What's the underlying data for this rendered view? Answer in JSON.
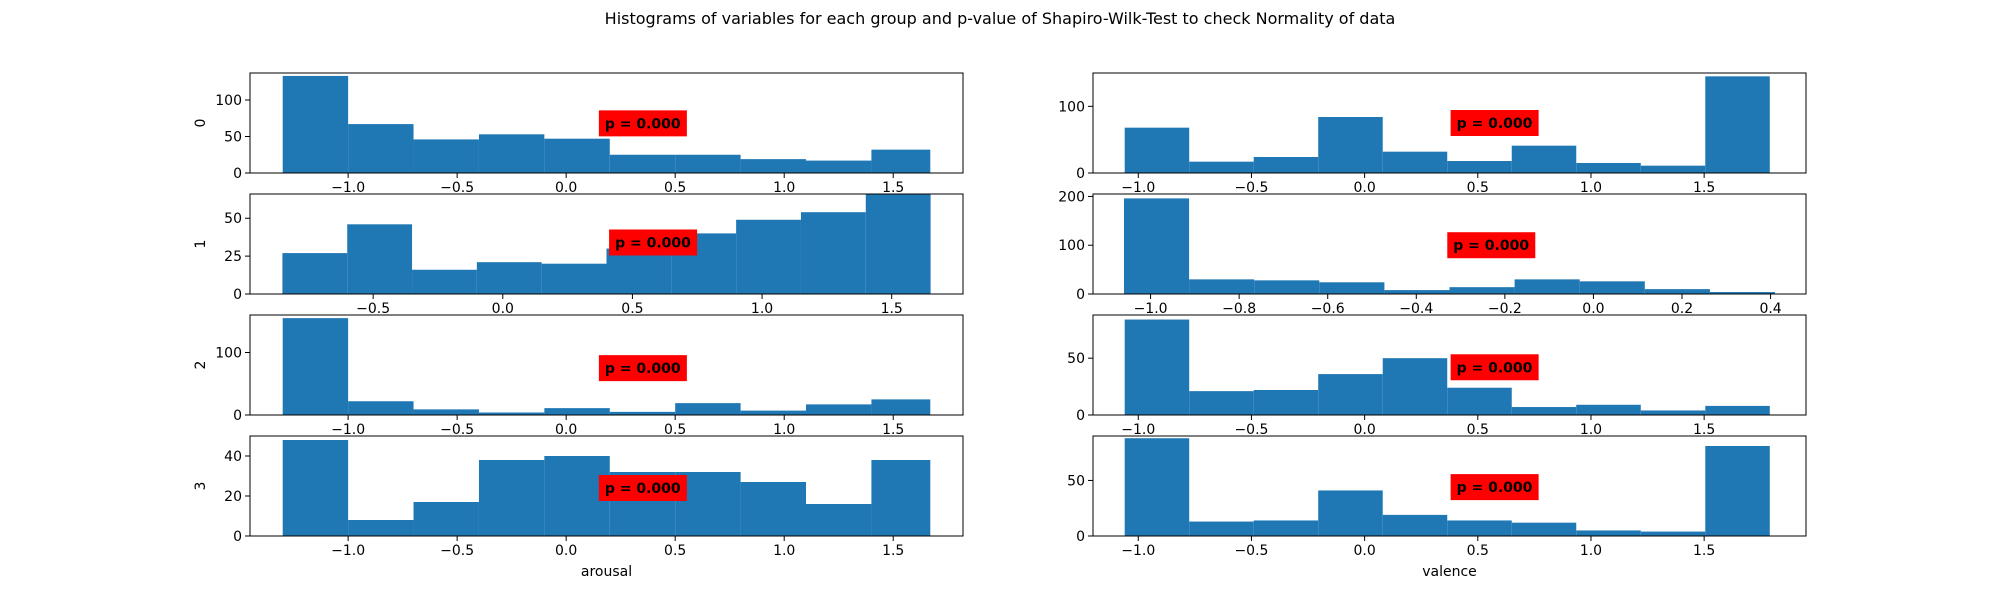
{
  "figure": {
    "title": "Histograms of variables for each group and p-value of Shapiro-Wilk-Test to check Normality of data",
    "bar_color": "#1f77b4",
    "annotation_color": "#ff0000"
  },
  "chart_data": [
    {
      "type": "bar",
      "row_label": "0",
      "column": "arousal",
      "xlabel": "",
      "bin_edges": [
        -1.3,
        -1.0,
        -0.7,
        -0.4,
        -0.1,
        0.2,
        0.5,
        0.8,
        1.1,
        1.4,
        1.67
      ],
      "values": [
        133,
        67,
        46,
        53,
        47,
        25,
        25,
        19,
        17,
        32
      ],
      "xticks": [
        -1.0,
        -0.5,
        0.0,
        0.5,
        1.0,
        1.5
      ],
      "xtick_labels": [
        "−1.0",
        "−0.5",
        "0.0",
        "0.5",
        "1.0",
        "1.5"
      ],
      "yticks": [
        0,
        50,
        100
      ],
      "ylim": [
        0,
        137
      ],
      "xlim": [
        -1.45,
        1.82
      ],
      "annotation": "p = 0.000",
      "annotation_xy": [
        0.15,
        68
      ]
    },
    {
      "type": "bar",
      "row_label": "",
      "column": "valence",
      "xlabel": "",
      "bin_edges": [
        -1.06,
        -0.775,
        -0.49,
        -0.205,
        0.08,
        0.365,
        0.65,
        0.935,
        1.22,
        1.505,
        1.79
      ],
      "values": [
        68,
        17,
        24,
        84,
        32,
        18,
        41,
        15,
        11,
        145
      ],
      "xticks": [
        -1.0,
        -0.5,
        0.0,
        0.5,
        1.0,
        1.5
      ],
      "xtick_labels": [
        "−1.0",
        "−0.5",
        "0.0",
        "0.5",
        "1.0",
        "1.5"
      ],
      "yticks": [
        0,
        100
      ],
      "ylim": [
        0,
        150
      ],
      "xlim": [
        -1.2,
        1.95
      ],
      "annotation": "p = 0.000",
      "annotation_xy": [
        0.38,
        75
      ]
    },
    {
      "type": "bar",
      "row_label": "1",
      "column": "arousal",
      "xlabel": "",
      "bin_edges": [
        -0.85,
        -0.6,
        -0.35,
        -0.1,
        0.15,
        0.4,
        0.65,
        0.9,
        1.15,
        1.4,
        1.65
      ],
      "values": [
        27,
        46,
        16,
        21,
        20,
        30,
        40,
        49,
        54,
        66
      ],
      "xticks": [
        -0.5,
        0.0,
        0.5,
        1.0,
        1.5
      ],
      "xtick_labels": [
        "−0.5",
        "0.0",
        "0.5",
        "1.0",
        "1.5"
      ],
      "yticks": [
        0,
        25,
        50
      ],
      "ylim": [
        0,
        66
      ],
      "xlim": [
        -0.975,
        1.775
      ],
      "annotation": "p = 0.000",
      "annotation_xy": [
        0.41,
        34
      ]
    },
    {
      "type": "bar",
      "row_label": "",
      "column": "valence",
      "xlabel": "",
      "bin_edges": [
        -1.06,
        -0.913,
        -0.766,
        -0.619,
        -0.472,
        -0.325,
        -0.178,
        -0.031,
        0.116,
        0.263,
        0.41
      ],
      "values": [
        196,
        30,
        28,
        24,
        8,
        14,
        30,
        26,
        10,
        4
      ],
      "xticks": [
        -1.0,
        -0.8,
        -0.6,
        -0.4,
        -0.2,
        0.0,
        0.2,
        0.4
      ],
      "xtick_labels": [
        "−1.0",
        "−0.8",
        "−0.6",
        "−0.4",
        "−0.2",
        "0.0",
        "0.2",
        "0.4"
      ],
      "yticks": [
        0,
        100,
        200
      ],
      "ylim": [
        0,
        205
      ],
      "xlim": [
        -1.13,
        0.48
      ],
      "annotation": "p = 0.000",
      "annotation_xy": [
        -0.33,
        100
      ]
    },
    {
      "type": "bar",
      "row_label": "2",
      "column": "arousal",
      "xlabel": "",
      "bin_edges": [
        -1.3,
        -1.0,
        -0.7,
        -0.4,
        -0.1,
        0.2,
        0.5,
        0.8,
        1.1,
        1.4,
        1.67
      ],
      "values": [
        155,
        22,
        9,
        4,
        11,
        5,
        19,
        7,
        17,
        25
      ],
      "xticks": [
        -1.0,
        -0.5,
        0.0,
        0.5,
        1.0,
        1.5
      ],
      "xtick_labels": [
        "−1.0",
        "−0.5",
        "0.0",
        "0.5",
        "1.0",
        "1.5"
      ],
      "yticks": [
        0,
        100
      ],
      "ylim": [
        0,
        160
      ],
      "xlim": [
        -1.45,
        1.82
      ],
      "annotation": "p = 0.000",
      "annotation_xy": [
        0.15,
        75
      ]
    },
    {
      "type": "bar",
      "row_label": "",
      "column": "valence",
      "xlabel": "",
      "bin_edges": [
        -1.06,
        -0.775,
        -0.49,
        -0.205,
        0.08,
        0.365,
        0.65,
        0.935,
        1.22,
        1.505,
        1.79
      ],
      "values": [
        84,
        21,
        22,
        36,
        50,
        24,
        7,
        9,
        4,
        8
      ],
      "xticks": [
        -1.0,
        -0.5,
        0.0,
        0.5,
        1.0,
        1.5
      ],
      "xtick_labels": [
        "−1.0",
        "−0.5",
        "0.0",
        "0.5",
        "1.0",
        "1.5"
      ],
      "yticks": [
        0,
        50
      ],
      "ylim": [
        0,
        88
      ],
      "xlim": [
        -1.2,
        1.95
      ],
      "annotation": "p = 0.000",
      "annotation_xy": [
        0.38,
        42
      ]
    },
    {
      "type": "bar",
      "row_label": "3",
      "column": "arousal",
      "xlabel": "arousal",
      "bin_edges": [
        -1.3,
        -1.0,
        -0.7,
        -0.4,
        -0.1,
        0.2,
        0.5,
        0.8,
        1.1,
        1.4,
        1.67
      ],
      "values": [
        48,
        8,
        17,
        38,
        40,
        32,
        32,
        27,
        16,
        38
      ],
      "xticks": [
        -1.0,
        -0.5,
        0.0,
        0.5,
        1.0,
        1.5
      ],
      "xtick_labels": [
        "−1.0",
        "−0.5",
        "0.0",
        "0.5",
        "1.0",
        "1.5"
      ],
      "yticks": [
        0,
        20,
        40
      ],
      "ylim": [
        0,
        50
      ],
      "xlim": [
        -1.45,
        1.82
      ],
      "annotation": "p = 0.000",
      "annotation_xy": [
        0.15,
        24
      ]
    },
    {
      "type": "bar",
      "row_label": "",
      "column": "valence",
      "xlabel": "valence",
      "bin_edges": [
        -1.06,
        -0.775,
        -0.49,
        -0.205,
        0.08,
        0.365,
        0.65,
        0.935,
        1.22,
        1.505,
        1.79
      ],
      "values": [
        88,
        13,
        14,
        41,
        19,
        14,
        12,
        5,
        4,
        81
      ],
      "xticks": [
        -1.0,
        -0.5,
        0.0,
        0.5,
        1.0,
        1.5
      ],
      "xtick_labels": [
        "−1.0",
        "−0.5",
        "0.0",
        "0.5",
        "1.0",
        "1.5"
      ],
      "yticks": [
        0,
        50
      ],
      "ylim": [
        0,
        90
      ],
      "xlim": [
        -1.2,
        1.95
      ],
      "annotation": "p = 0.000",
      "annotation_xy": [
        0.38,
        44
      ]
    }
  ]
}
